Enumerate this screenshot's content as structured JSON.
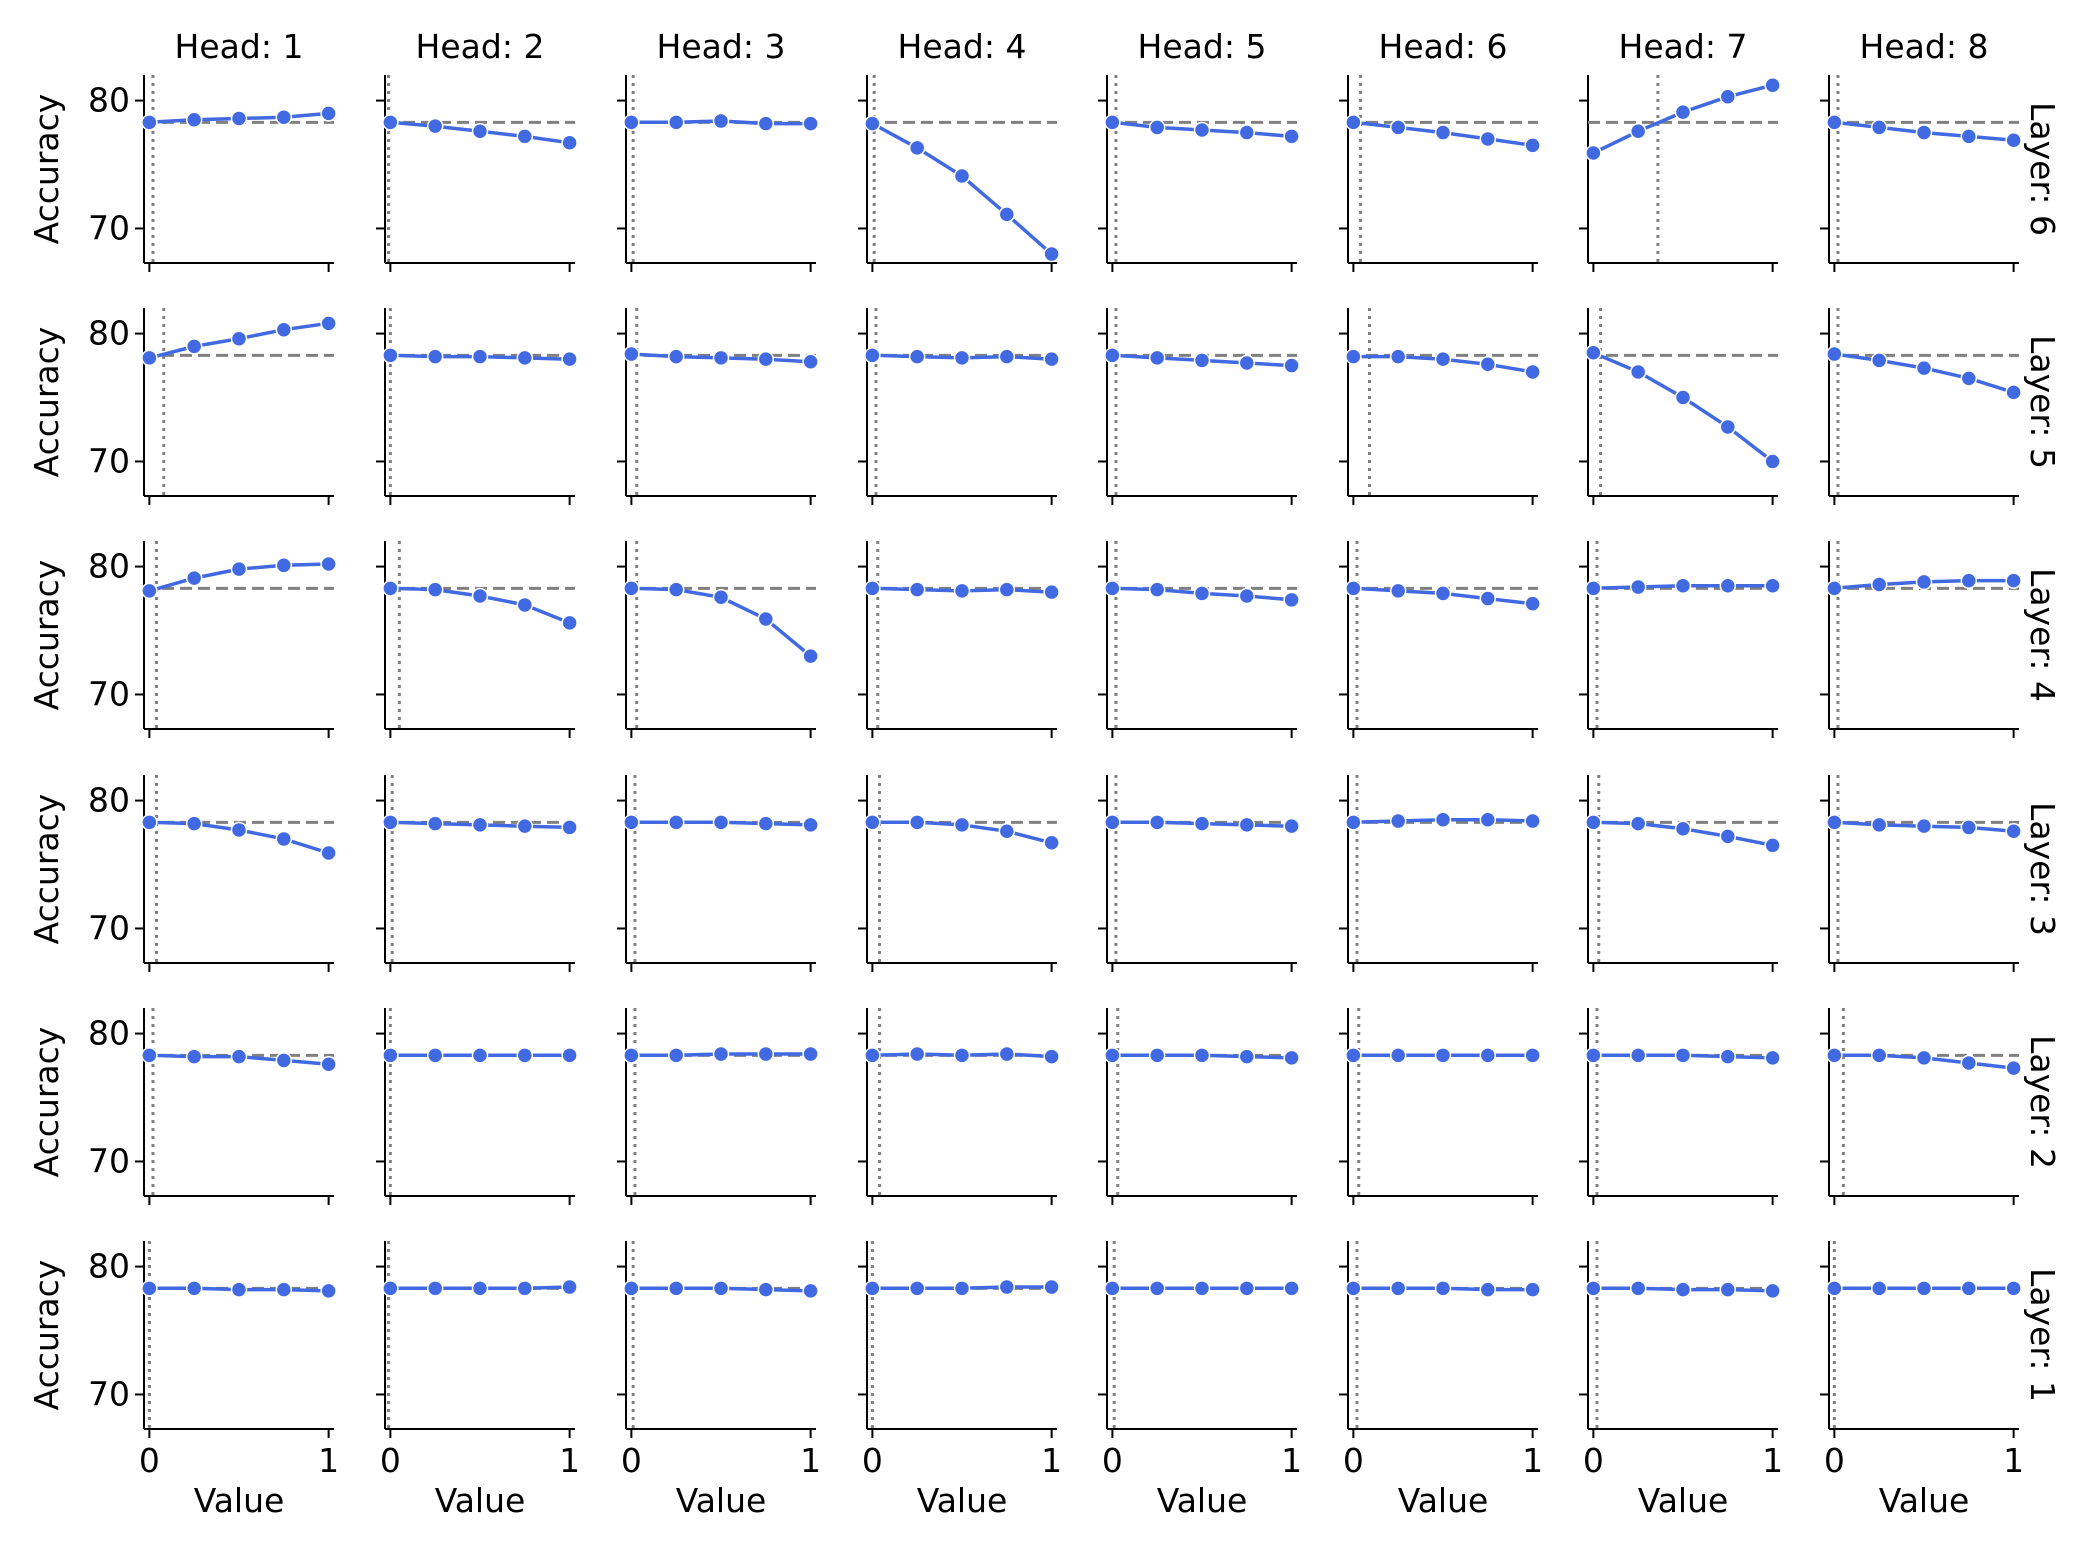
{
  "chart_data": {
    "type": "line",
    "layout": "facet-grid",
    "col_titles": [
      "Head: 1",
      "Head: 2",
      "Head: 3",
      "Head: 4",
      "Head: 5",
      "Head: 6",
      "Head: 7",
      "Head: 8"
    ],
    "row_titles": [
      "Layer: 6",
      "Layer: 5",
      "Layer: 4",
      "Layer: 3",
      "Layer: 2",
      "Layer: 1"
    ],
    "xlabel": "Value",
    "ylabel": "Accuracy",
    "x": [
      0,
      0.25,
      0.5,
      0.75,
      1
    ],
    "xticks": [
      0,
      1
    ],
    "yticks": [
      70,
      80
    ],
    "ylim": [
      67.3,
      82
    ],
    "xlim": [
      -0.03,
      1.03
    ],
    "baseline": 78.3,
    "colors": {
      "line": "#4169e1",
      "reference": "#808080",
      "axis": "#000000"
    },
    "panels": [
      [
        {
          "values": [
            78.3,
            78.5,
            78.6,
            78.7,
            79.0
          ],
          "vline": 0.02
        },
        {
          "values": [
            78.3,
            78.0,
            77.6,
            77.2,
            76.7
          ],
          "vline": -0.01
        },
        {
          "values": [
            78.3,
            78.3,
            78.4,
            78.2,
            78.2
          ],
          "vline": 0.01
        },
        {
          "values": [
            78.2,
            76.3,
            74.1,
            71.1,
            68.0
          ],
          "vline": 0.01
        },
        {
          "values": [
            78.3,
            77.9,
            77.7,
            77.5,
            77.2
          ],
          "vline": 0.02
        },
        {
          "values": [
            78.3,
            77.9,
            77.5,
            77.0,
            76.5
          ],
          "vline": 0.04
        },
        {
          "values": [
            75.9,
            77.6,
            79.1,
            80.3,
            81.2
          ],
          "vline": 0.36
        },
        {
          "values": [
            78.3,
            77.9,
            77.5,
            77.2,
            76.9
          ],
          "vline": 0.02
        }
      ],
      [
        {
          "values": [
            78.1,
            79.0,
            79.6,
            80.3,
            80.8
          ],
          "vline": 0.08
        },
        {
          "values": [
            78.3,
            78.2,
            78.2,
            78.1,
            78.0
          ],
          "vline": 0.0
        },
        {
          "values": [
            78.4,
            78.2,
            78.1,
            78.0,
            77.8
          ],
          "vline": 0.03
        },
        {
          "values": [
            78.3,
            78.2,
            78.1,
            78.2,
            78.0
          ],
          "vline": 0.02
        },
        {
          "values": [
            78.3,
            78.1,
            77.9,
            77.7,
            77.5
          ],
          "vline": 0.02
        },
        {
          "values": [
            78.2,
            78.2,
            78.0,
            77.6,
            77.0
          ],
          "vline": 0.09
        },
        {
          "values": [
            78.5,
            77.0,
            75.0,
            72.7,
            70.0
          ],
          "vline": 0.04
        },
        {
          "values": [
            78.4,
            77.9,
            77.3,
            76.5,
            75.4
          ],
          "vline": 0.02
        }
      ],
      [
        {
          "values": [
            78.1,
            79.1,
            79.8,
            80.1,
            80.2
          ],
          "vline": 0.04
        },
        {
          "values": [
            78.3,
            78.2,
            77.7,
            77.0,
            75.6
          ],
          "vline": 0.05
        },
        {
          "values": [
            78.3,
            78.2,
            77.6,
            75.9,
            73.0
          ],
          "vline": 0.03
        },
        {
          "values": [
            78.3,
            78.2,
            78.1,
            78.2,
            78.0
          ],
          "vline": 0.03
        },
        {
          "values": [
            78.3,
            78.2,
            77.9,
            77.7,
            77.4
          ],
          "vline": 0.02
        },
        {
          "values": [
            78.3,
            78.1,
            77.9,
            77.5,
            77.1
          ],
          "vline": 0.02
        },
        {
          "values": [
            78.3,
            78.4,
            78.5,
            78.5,
            78.5
          ],
          "vline": 0.02
        },
        {
          "values": [
            78.3,
            78.6,
            78.8,
            78.9,
            78.9
          ],
          "vline": 0.02
        }
      ],
      [
        {
          "values": [
            78.3,
            78.2,
            77.7,
            77.0,
            75.9
          ],
          "vline": 0.04
        },
        {
          "values": [
            78.3,
            78.2,
            78.1,
            78.0,
            77.9
          ],
          "vline": 0.01
        },
        {
          "values": [
            78.3,
            78.3,
            78.3,
            78.2,
            78.1
          ],
          "vline": 0.02
        },
        {
          "values": [
            78.3,
            78.3,
            78.1,
            77.6,
            76.7
          ],
          "vline": 0.04
        },
        {
          "values": [
            78.3,
            78.3,
            78.2,
            78.1,
            78.0
          ],
          "vline": 0.02
        },
        {
          "values": [
            78.3,
            78.4,
            78.5,
            78.5,
            78.4
          ],
          "vline": 0.02
        },
        {
          "values": [
            78.3,
            78.2,
            77.8,
            77.2,
            76.5
          ],
          "vline": 0.03
        },
        {
          "values": [
            78.3,
            78.1,
            78.0,
            77.9,
            77.6
          ],
          "vline": 0.02
        }
      ],
      [
        {
          "values": [
            78.3,
            78.2,
            78.2,
            77.9,
            77.6
          ],
          "vline": 0.02
        },
        {
          "values": [
            78.3,
            78.3,
            78.3,
            78.3,
            78.3
          ],
          "vline": 0.0
        },
        {
          "values": [
            78.3,
            78.3,
            78.4,
            78.4,
            78.4
          ],
          "vline": 0.02
        },
        {
          "values": [
            78.3,
            78.4,
            78.3,
            78.4,
            78.2
          ],
          "vline": 0.04
        },
        {
          "values": [
            78.3,
            78.3,
            78.3,
            78.2,
            78.1
          ],
          "vline": 0.03
        },
        {
          "values": [
            78.3,
            78.3,
            78.3,
            78.3,
            78.3
          ],
          "vline": 0.03
        },
        {
          "values": [
            78.3,
            78.3,
            78.3,
            78.2,
            78.1
          ],
          "vline": 0.02
        },
        {
          "values": [
            78.3,
            78.3,
            78.1,
            77.7,
            77.3
          ],
          "vline": 0.05
        }
      ],
      [
        {
          "values": [
            78.3,
            78.3,
            78.2,
            78.2,
            78.1
          ],
          "vline": 0.0
        },
        {
          "values": [
            78.3,
            78.3,
            78.3,
            78.3,
            78.4
          ],
          "vline": -0.01
        },
        {
          "values": [
            78.3,
            78.3,
            78.3,
            78.2,
            78.1
          ],
          "vline": 0.01
        },
        {
          "values": [
            78.3,
            78.3,
            78.3,
            78.4,
            78.4
          ],
          "vline": 0.0
        },
        {
          "values": [
            78.3,
            78.3,
            78.3,
            78.3,
            78.3
          ],
          "vline": 0.01
        },
        {
          "values": [
            78.3,
            78.3,
            78.3,
            78.2,
            78.2
          ],
          "vline": 0.02
        },
        {
          "values": [
            78.3,
            78.3,
            78.2,
            78.2,
            78.1
          ],
          "vline": 0.02
        },
        {
          "values": [
            78.3,
            78.3,
            78.3,
            78.3,
            78.3
          ],
          "vline": 0.0
        }
      ]
    ]
  }
}
